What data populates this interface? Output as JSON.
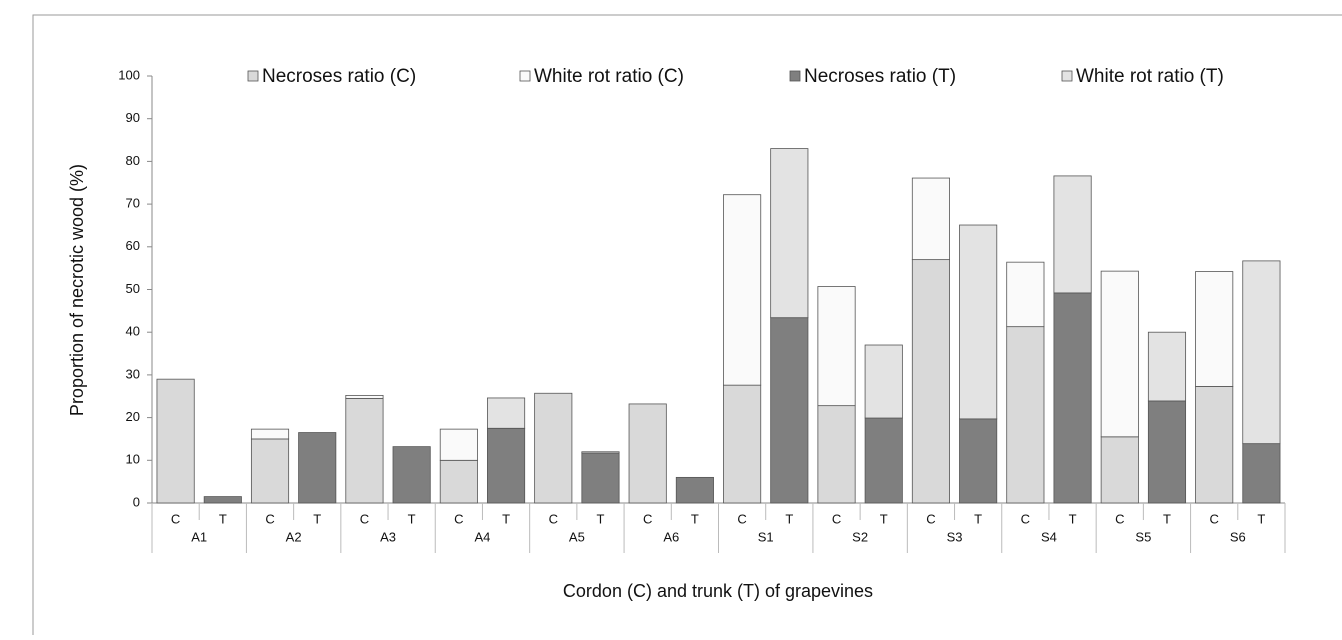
{
  "chart_data": {
    "type": "stacked-bar",
    "y_label": "Proportion of necrotic wood (%)",
    "x_label": "Cordon (C) and trunk (T) of grapevines",
    "categories": [
      "C",
      "T",
      "C",
      "T",
      "C",
      "T",
      "C",
      "T",
      "C",
      "T",
      "C",
      "T",
      "C",
      "T",
      "C",
      "T",
      "C",
      "T",
      "C",
      "T",
      "C",
      "T",
      "C",
      "T"
    ],
    "groups": [
      "A1",
      "A2",
      "A3",
      "A4",
      "A5",
      "A6",
      "S1",
      "S2",
      "S3",
      "S4",
      "S5",
      "S6"
    ],
    "ylim": [
      0,
      100
    ],
    "yticks": [
      0,
      10,
      20,
      30,
      40,
      50,
      60,
      70,
      80,
      90,
      100
    ],
    "series": [
      {
        "name": "Necroses ratio (C)",
        "color": "#d9d9d9",
        "values": [
          29,
          null,
          15,
          null,
          24.5,
          null,
          10,
          null,
          25.7,
          null,
          23.2,
          null,
          27.6,
          null,
          22.8,
          null,
          57,
          null,
          41.3,
          null,
          15.5,
          null,
          27.3,
          null
        ]
      },
      {
        "name": "White rot ratio (C)",
        "color": "#fafafa",
        "values": [
          0,
          null,
          2.3,
          null,
          0.7,
          null,
          7.3,
          null,
          0,
          null,
          0,
          null,
          44.6,
          null,
          27.9,
          null,
          19.1,
          null,
          15.1,
          null,
          38.8,
          null,
          26.9,
          null
        ]
      },
      {
        "name": "Necroses ratio (T)",
        "color": "#7f7f7f",
        "values": [
          null,
          1.5,
          null,
          16.5,
          null,
          13.2,
          null,
          17.5,
          null,
          11.7,
          null,
          6,
          null,
          43.4,
          null,
          19.9,
          null,
          19.7,
          null,
          49.2,
          null,
          23.9,
          null,
          13.9
        ]
      },
      {
        "name": "White rot ratio (T)",
        "color": "#e3e3e3",
        "values": [
          null,
          0,
          null,
          0,
          null,
          0,
          null,
          7.1,
          null,
          0.3,
          null,
          0,
          null,
          39.6,
          null,
          17.1,
          null,
          45.4,
          null,
          27.4,
          null,
          16.1,
          null,
          42.8
        ]
      }
    ]
  }
}
